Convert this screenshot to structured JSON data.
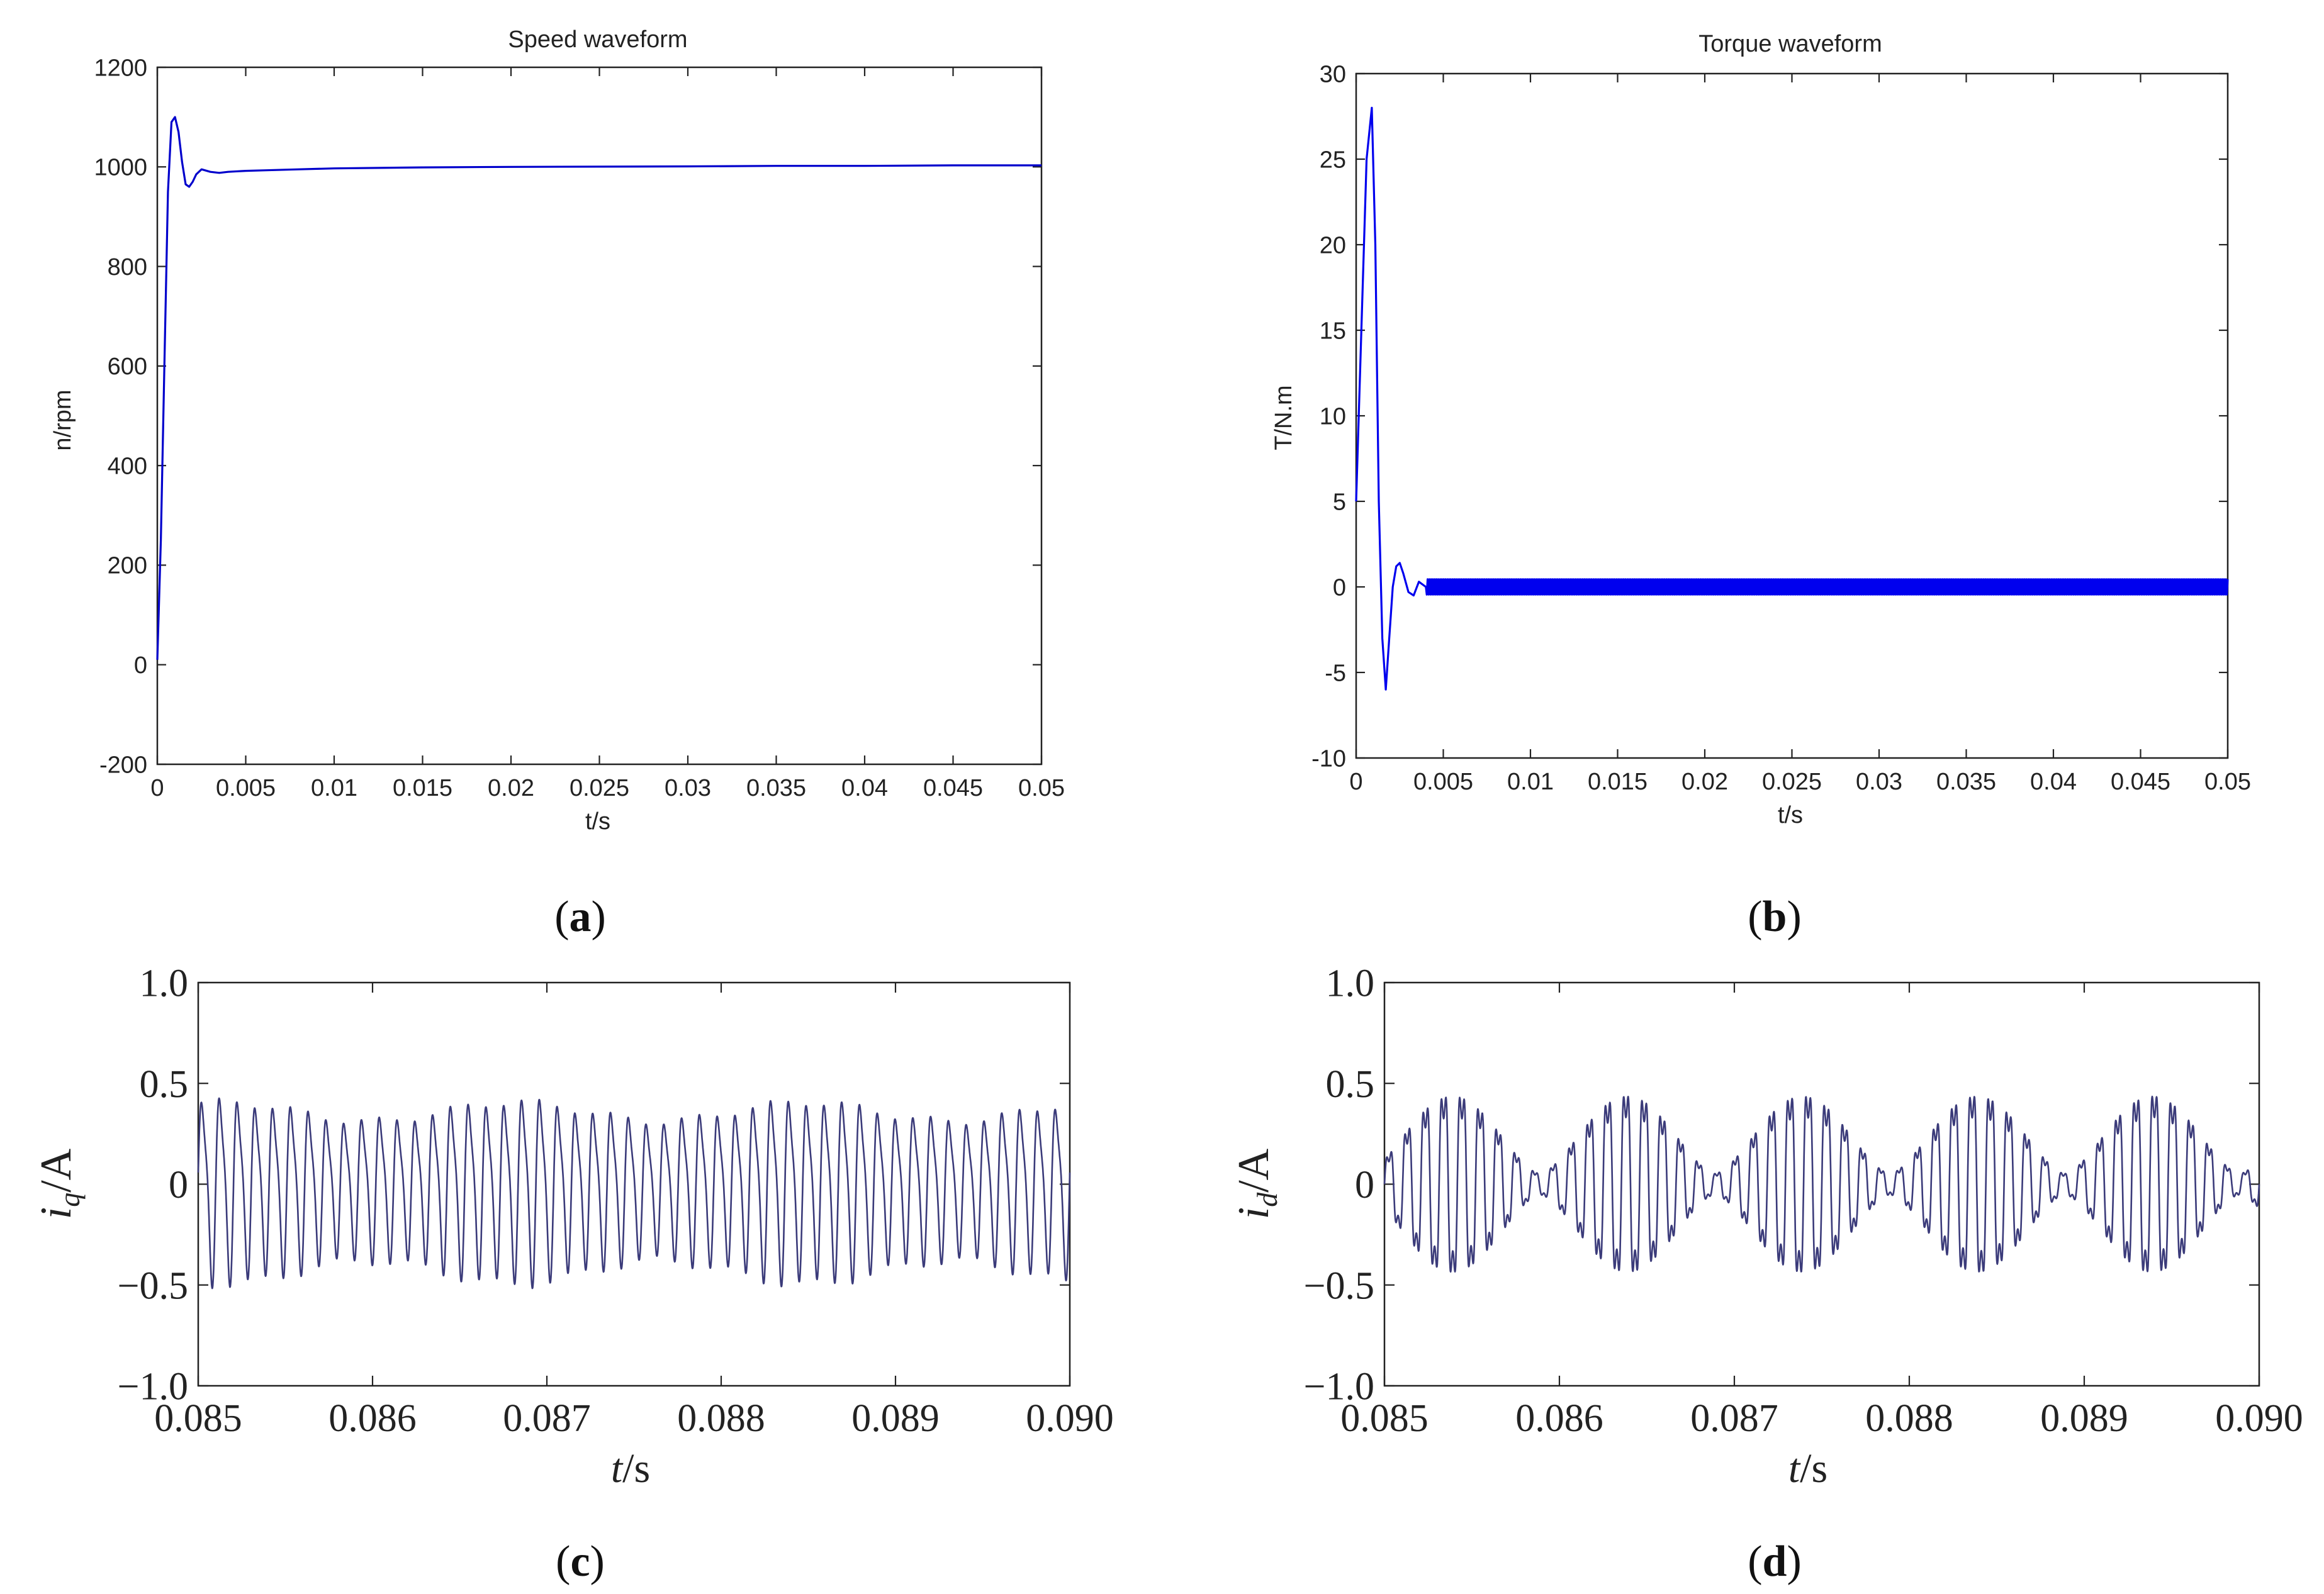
{
  "chart_data": [
    {
      "id": "a",
      "panel_label": "a",
      "type": "line",
      "title": "Speed waveform",
      "xlabel": "t/s",
      "ylabel": "n/rpm",
      "xlim": [
        0,
        0.05
      ],
      "ylim": [
        -200,
        1200
      ],
      "xticks": [
        "0",
        "0.005",
        "0.01",
        "0.015",
        "0.02",
        "0.025",
        "0.03",
        "0.035",
        "0.04",
        "0.045",
        "0.05"
      ],
      "yticks": [
        "-200",
        "0",
        "200",
        "400",
        "600",
        "800",
        "1000",
        "1200"
      ],
      "grid": false,
      "series": [
        {
          "color": "#0000cc",
          "x": [
            0,
            0.0002,
            0.0004,
            0.0006,
            0.0008,
            0.001,
            0.0012,
            0.0014,
            0.0016,
            0.0018,
            0.002,
            0.0022,
            0.0025,
            0.003,
            0.0035,
            0.004,
            0.005,
            0.006,
            0.008,
            0.01,
            0.015,
            0.02,
            0.03,
            0.035,
            0.04,
            0.045,
            0.05
          ],
          "y": [
            10,
            250,
            600,
            950,
            1090,
            1100,
            1070,
            1010,
            965,
            960,
            970,
            985,
            995,
            990,
            988,
            990,
            992,
            993,
            995,
            997,
            999,
            1000,
            1001,
            1002,
            1002,
            1003,
            1003
          ]
        }
      ]
    },
    {
      "id": "b",
      "panel_label": "b",
      "type": "line",
      "title": "Torque waveform",
      "xlabel": "t/s",
      "ylabel": "T/N.m",
      "xlim": [
        0,
        0.05
      ],
      "ylim": [
        -10,
        30
      ],
      "xticks": [
        "0",
        "0.005",
        "0.01",
        "0.015",
        "0.02",
        "0.025",
        "0.03",
        "0.035",
        "0.04",
        "0.045",
        "0.05"
      ],
      "yticks": [
        "-10",
        "-5",
        "0",
        "5",
        "10",
        "15",
        "20",
        "25",
        "30"
      ],
      "grid": false,
      "series": [
        {
          "color": "#0000ee",
          "x": [
            0,
            0.0003,
            0.0006,
            0.0009,
            0.0011,
            0.0013,
            0.0015,
            0.0017,
            0.0019,
            0.0021,
            0.0023,
            0.0025,
            0.0027,
            0.003,
            0.0033,
            0.0036,
            0.004
          ],
          "y": [
            5,
            15,
            25,
            28,
            20,
            5,
            -3,
            -6,
            -3,
            0,
            1.2,
            1.4,
            0.8,
            -0.3,
            -0.5,
            0.3,
            0
          ],
          "ripple_band": [
            -0.45,
            0.45
          ]
        }
      ]
    },
    {
      "id": "c",
      "panel_label": "c",
      "type": "line",
      "title": "",
      "xlabel": "t/s",
      "ylabel": "i_q/A",
      "ylabel_main": "i",
      "ylabel_sub": "q",
      "ylabel_unit": "/A",
      "xlabel_italic": "t",
      "xlabel_unit": "/s",
      "xlim": [
        0.085,
        0.09
      ],
      "ylim": [
        -1.0,
        1.0
      ],
      "xticks": [
        "0.085",
        "0.086",
        "0.087",
        "0.088",
        "0.089",
        "0.090"
      ],
      "yticks": [
        "−1.0",
        "−0.5",
        "0",
        "0.5",
        "1.0"
      ],
      "grid": false,
      "series": [
        {
          "color": "#3b3b7a",
          "waveform": "oscillation",
          "cycles": 49,
          "amplitude": 0.45
        }
      ]
    },
    {
      "id": "d",
      "panel_label": "d",
      "type": "line",
      "title": "",
      "xlabel": "t/s",
      "ylabel": "i_d/A",
      "ylabel_main": "i",
      "ylabel_sub": "d",
      "ylabel_unit": "/A",
      "xlabel_italic": "t",
      "xlabel_unit": "/s",
      "xlim": [
        0.085,
        0.09
      ],
      "ylim": [
        -1.0,
        1.0
      ],
      "xticks": [
        "0.085",
        "0.086",
        "0.087",
        "0.088",
        "0.089",
        "0.090"
      ],
      "yticks": [
        "−1.0",
        "−0.5",
        "0",
        "0.5",
        "1.0"
      ],
      "grid": false,
      "series": [
        {
          "color": "#3b3b7a",
          "waveform": "beating-oscillation",
          "cycles": 48,
          "amplitude": 0.52,
          "beat_cycles": 5
        }
      ]
    }
  ]
}
